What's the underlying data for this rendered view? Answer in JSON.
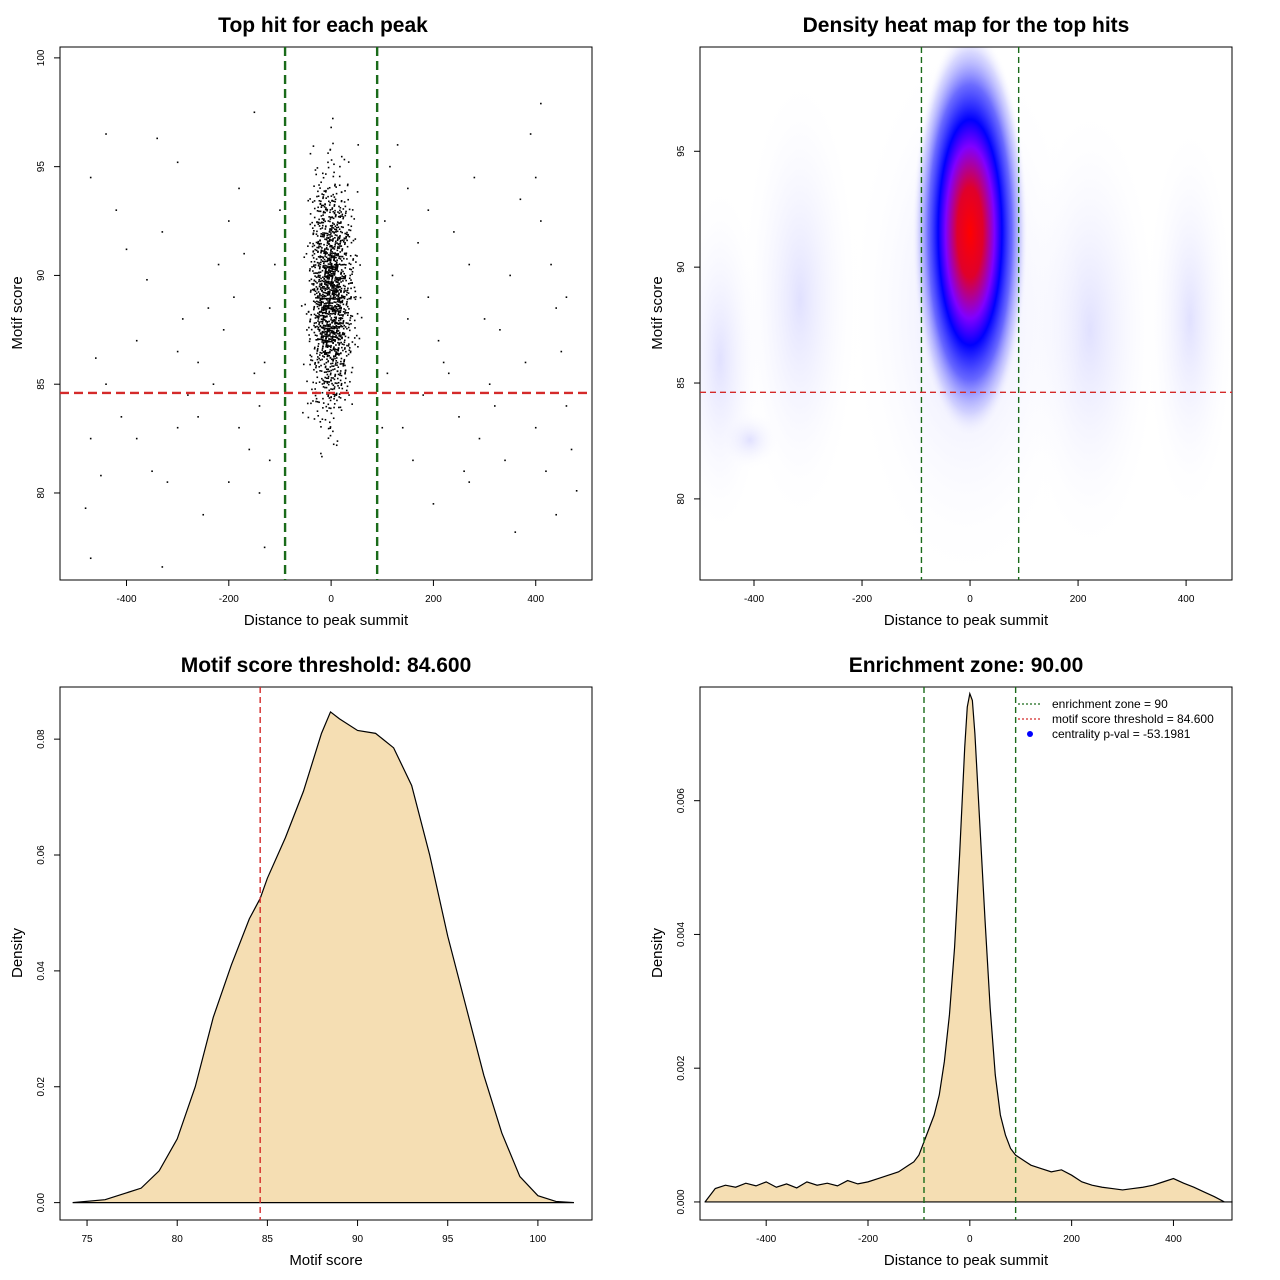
{
  "chart_data": [
    {
      "type": "scatter",
      "title": "Top hit for each peak",
      "xlabel": "Distance to peak summit",
      "ylabel": "Motif score",
      "xlim": [
        -530,
        510
      ],
      "ylim": [
        76.0,
        100.5
      ],
      "xticks": [
        "-400",
        "-200",
        "0",
        "200",
        "400"
      ],
      "yticks": [
        "80",
        "85",
        "90",
        "95",
        "100"
      ],
      "xtick_values": [
        -400,
        -200,
        0,
        200,
        400
      ],
      "ytick_values": [
        80,
        85,
        90,
        95,
        100
      ],
      "reference_lines": {
        "vertical": [
          -90,
          90
        ],
        "horizontal": [
          84.6
        ],
        "vertical_color": "#1a6b1a",
        "horizontal_color": "#d42a2a"
      },
      "points_note": "~2000 points concentrated near 0, sparse elsewhere",
      "points": [
        [
          -480,
          79.3
        ],
        [
          -470,
          77.0
        ],
        [
          -440,
          96.5
        ],
        [
          -470,
          94.5
        ],
        [
          -330,
          76.6
        ],
        [
          -340,
          96.3
        ],
        [
          -420,
          93.0
        ],
        [
          -400,
          91.2
        ],
        [
          -360,
          89.8
        ],
        [
          -300,
          95.2
        ],
        [
          -290,
          88.0
        ],
        [
          -380,
          87.0
        ],
        [
          -460,
          86.2
        ],
        [
          -440,
          85.0
        ],
        [
          -410,
          83.5
        ],
        [
          -380,
          82.5
        ],
        [
          -350,
          81.0
        ],
        [
          -320,
          80.5
        ],
        [
          -300,
          83.0
        ],
        [
          -280,
          84.5
        ],
        [
          -260,
          86.0
        ],
        [
          -240,
          88.5
        ],
        [
          -220,
          90.5
        ],
        [
          -200,
          92.5
        ],
        [
          -180,
          94.0
        ],
        [
          -150,
          97.5
        ],
        [
          -200,
          80.5
        ],
        [
          -160,
          82.0
        ],
        [
          -140,
          84.0
        ],
        [
          -130,
          86.0
        ],
        [
          -120,
          88.5
        ],
        [
          -110,
          90.5
        ],
        [
          -100,
          93.0
        ],
        [
          -120,
          81.5
        ],
        [
          -130,
          77.5
        ],
        [
          -250,
          79.0
        ],
        [
          -450,
          80.8
        ],
        [
          -470,
          82.5
        ],
        [
          -330,
          92.0
        ],
        [
          -300,
          86.5
        ],
        [
          -260,
          83.5
        ],
        [
          -230,
          85.0
        ],
        [
          -210,
          87.5
        ],
        [
          -190,
          89.0
        ],
        [
          -170,
          91.0
        ],
        [
          -150,
          85.5
        ],
        [
          -140,
          80.0
        ],
        [
          -180,
          83.0
        ],
        [
          480,
          80.1
        ],
        [
          470,
          82.0
        ],
        [
          460,
          84.0
        ],
        [
          450,
          86.5
        ],
        [
          440,
          88.5
        ],
        [
          430,
          90.5
        ],
        [
          410,
          92.5
        ],
        [
          400,
          94.5
        ],
        [
          410,
          97.9
        ],
        [
          390,
          96.5
        ],
        [
          370,
          93.5
        ],
        [
          350,
          90.0
        ],
        [
          330,
          87.5
        ],
        [
          310,
          85.0
        ],
        [
          290,
          82.5
        ],
        [
          270,
          80.5
        ],
        [
          250,
          83.5
        ],
        [
          230,
          85.5
        ],
        [
          210,
          87.0
        ],
        [
          190,
          89.0
        ],
        [
          170,
          91.5
        ],
        [
          150,
          94.0
        ],
        [
          130,
          96.0
        ],
        [
          140,
          83.0
        ],
        [
          160,
          81.5
        ],
        [
          180,
          84.5
        ],
        [
          200,
          79.5
        ],
        [
          240,
          92.0
        ],
        [
          280,
          94.5
        ],
        [
          360,
          78.2
        ],
        [
          420,
          81.0
        ],
        [
          440,
          79.0
        ],
        [
          460,
          89.0
        ],
        [
          300,
          88.0
        ],
        [
          270,
          90.5
        ],
        [
          220,
          86.0
        ],
        [
          150,
          88.0
        ],
        [
          120,
          90.0
        ],
        [
          110,
          85.5
        ],
        [
          100,
          83.0
        ],
        [
          105,
          92.5
        ],
        [
          115,
          95.0
        ],
        [
          320,
          84.0
        ],
        [
          380,
          86.0
        ],
        [
          400,
          83.0
        ],
        [
          340,
          81.5
        ],
        [
          260,
          81.0
        ],
        [
          190,
          93.0
        ]
      ]
    },
    {
      "type": "heatmap",
      "title": "Density heat map for the top hits",
      "xlabel": "Distance to peak summit",
      "ylabel": "Motif score",
      "xlim": [
        -500,
        485
      ],
      "ylim": [
        76.5,
        99.5
      ],
      "xticks": [
        "-400",
        "-200",
        "0",
        "200",
        "400"
      ],
      "yticks": [
        "80",
        "85",
        "90",
        "95"
      ],
      "xtick_values": [
        -400,
        -200,
        0,
        200,
        400
      ],
      "ytick_values": [
        80,
        85,
        90,
        95
      ],
      "peak": {
        "x": 0,
        "y": 91.5
      },
      "colors": {
        "low": "#ffffff",
        "mid": "#0000ff",
        "high": "#ff0000"
      },
      "reference_lines": {
        "vertical": [
          -90,
          90
        ],
        "horizontal": [
          84.6
        ],
        "vertical_color": "#1a6b1a",
        "horizontal_color": "#d42a2a"
      }
    },
    {
      "type": "area",
      "title": "Motif score threshold: 84.600",
      "xlabel": "Motif score",
      "ylabel": "Density",
      "xlim": [
        73.5,
        103
      ],
      "ylim": [
        -0.003,
        0.089
      ],
      "xticks": [
        "75",
        "80",
        "85",
        "90",
        "95",
        "100"
      ],
      "yticks": [
        "0.00",
        "0.02",
        "0.04",
        "0.06",
        "0.08"
      ],
      "xtick_values": [
        75,
        80,
        85,
        90,
        95,
        100
      ],
      "ytick_values": [
        0.0,
        0.02,
        0.04,
        0.06,
        0.08
      ],
      "fill": "#f5deb3",
      "reference_lines": {
        "vertical": [
          84.6
        ],
        "vertical_color": "#d42a2a"
      },
      "x": [
        74.2,
        76,
        78,
        79,
        80,
        81,
        82,
        83,
        84,
        84.6,
        85,
        86,
        87,
        88,
        88.5,
        89,
        90,
        91,
        92,
        93,
        94,
        95,
        96,
        97,
        98,
        99,
        100,
        101,
        102
      ],
      "y": [
        0.0,
        0.0005,
        0.0025,
        0.0055,
        0.011,
        0.02,
        0.032,
        0.041,
        0.049,
        0.0525,
        0.056,
        0.063,
        0.071,
        0.081,
        0.0847,
        0.0835,
        0.0815,
        0.081,
        0.0785,
        0.072,
        0.06,
        0.046,
        0.034,
        0.022,
        0.012,
        0.0045,
        0.0012,
        0.0002,
        0.0
      ]
    },
    {
      "type": "area",
      "title": "Enrichment zone: 90.00",
      "xlabel": "Distance to peak summit",
      "ylabel": "Density",
      "xlim": [
        -530,
        515
      ],
      "ylim": [
        -0.00027,
        0.0077
      ],
      "xticks": [
        "-400",
        "-200",
        "0",
        "200",
        "400"
      ],
      "yticks": [
        "0.000",
        "0.002",
        "0.004",
        "0.006"
      ],
      "xtick_values": [
        -400,
        -200,
        0,
        200,
        400
      ],
      "ytick_values": [
        0.0,
        0.002,
        0.004,
        0.006
      ],
      "fill": "#f5deb3",
      "reference_lines": {
        "vertical": [
          -90,
          90
        ],
        "vertical_color": "#1a6b1a"
      },
      "legend": {
        "placement": "top-right",
        "entries": [
          {
            "label": "enrichment zone = 90",
            "color": "#1a6b1a",
            "symbol": "dotted-line"
          },
          {
            "label": "motif score threshold = 84.600",
            "color": "#d42a2a",
            "symbol": "dotted-line"
          },
          {
            "label": "centrality p-val = -53.1981",
            "color": "#0000ff",
            "symbol": "point"
          }
        ]
      },
      "x": [
        -520,
        -500,
        -480,
        -460,
        -440,
        -420,
        -400,
        -380,
        -360,
        -340,
        -320,
        -300,
        -280,
        -260,
        -240,
        -220,
        -200,
        -180,
        -160,
        -140,
        -120,
        -110,
        -100,
        -90,
        -80,
        -70,
        -60,
        -50,
        -40,
        -30,
        -20,
        -10,
        -5,
        0,
        5,
        10,
        20,
        30,
        40,
        50,
        60,
        70,
        80,
        90,
        100,
        110,
        120,
        140,
        160,
        180,
        200,
        220,
        240,
        260,
        280,
        300,
        320,
        340,
        360,
        380,
        400,
        420,
        440,
        460,
        480,
        500,
        515
      ],
      "y": [
        0.0,
        0.0002,
        0.00025,
        0.00022,
        0.00028,
        0.00024,
        0.0003,
        0.00022,
        0.00027,
        0.00021,
        0.0003,
        0.00025,
        0.00028,
        0.00024,
        0.00032,
        0.00027,
        0.0003,
        0.00035,
        0.0004,
        0.00045,
        0.00055,
        0.0006,
        0.0007,
        0.0009,
        0.0011,
        0.0013,
        0.0016,
        0.0021,
        0.0028,
        0.0038,
        0.0052,
        0.0068,
        0.0074,
        0.0076,
        0.0075,
        0.007,
        0.0056,
        0.0042,
        0.0029,
        0.0019,
        0.0013,
        0.001,
        0.0008,
        0.0007,
        0.00065,
        0.0006,
        0.00055,
        0.0005,
        0.00045,
        0.00048,
        0.0004,
        0.0003,
        0.00025,
        0.00022,
        0.0002,
        0.00018,
        0.0002,
        0.00022,
        0.00025,
        0.0003,
        0.00035,
        0.00028,
        0.00022,
        0.00015,
        8e-05,
        0.0,
        0.0
      ]
    }
  ]
}
